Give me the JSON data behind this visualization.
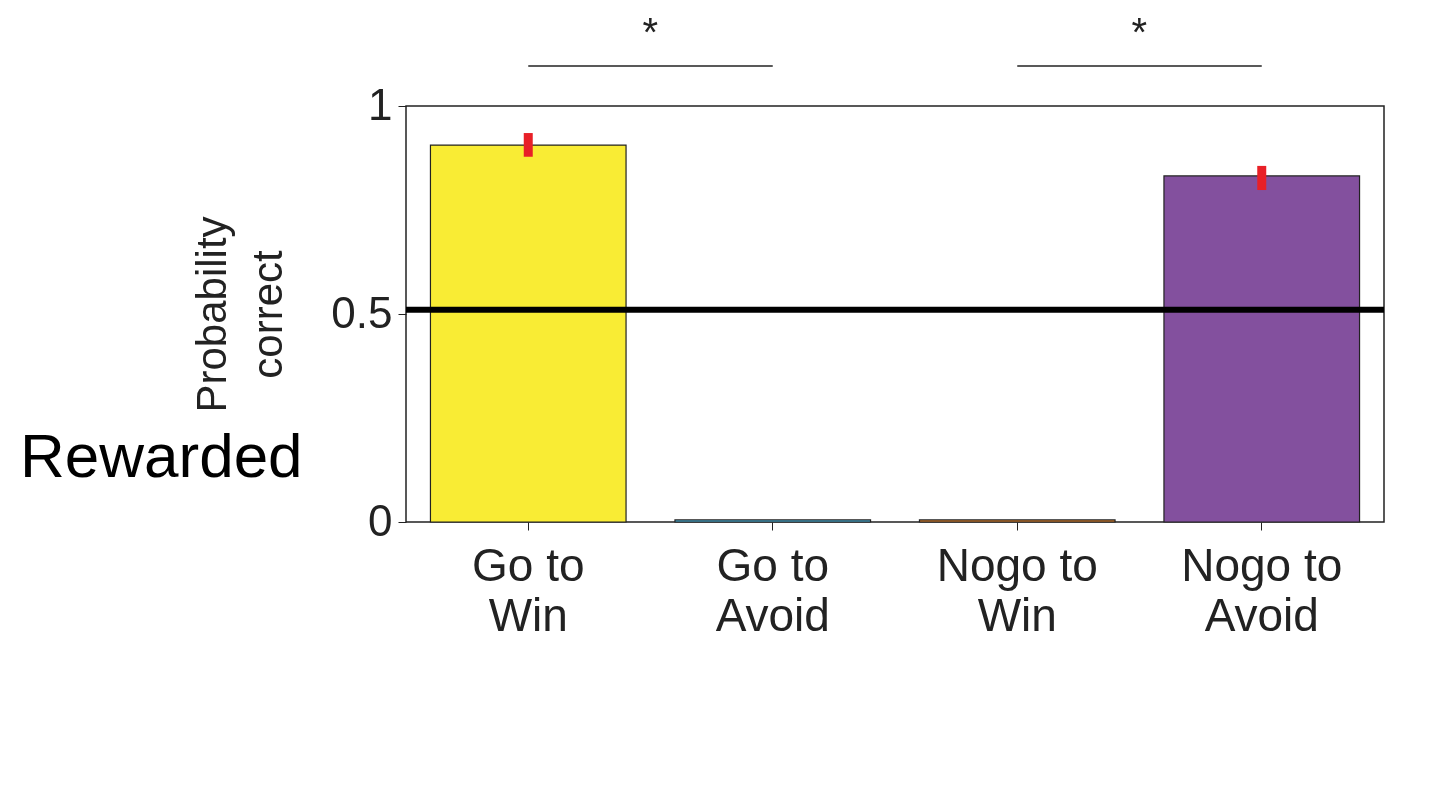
{
  "chart_data": {
    "type": "bar",
    "ylabel": "Probability correct",
    "categories": [
      "Go to Win",
      "Go to Avoid",
      "Nogo to Win",
      "Nogo to Avoid"
    ],
    "values": [
      0.906,
      0.005,
      0.005,
      0.832
    ],
    "colors": [
      "#f9ec34",
      "#4cbde6",
      "#e9862a",
      "#83509e"
    ],
    "errors": [
      [
        0.878,
        0.935
      ],
      null,
      null,
      [
        0.798,
        0.856
      ]
    ],
    "ylim": [
      0,
      1
    ],
    "yticks": [
      0,
      0.5,
      1
    ],
    "grid": false,
    "ref_lines": [
      {
        "axis": "y",
        "value": 0.51,
        "color": "#000000"
      }
    ],
    "annotations": [
      "*",
      "*",
      "Rewarded"
    ]
  }
}
